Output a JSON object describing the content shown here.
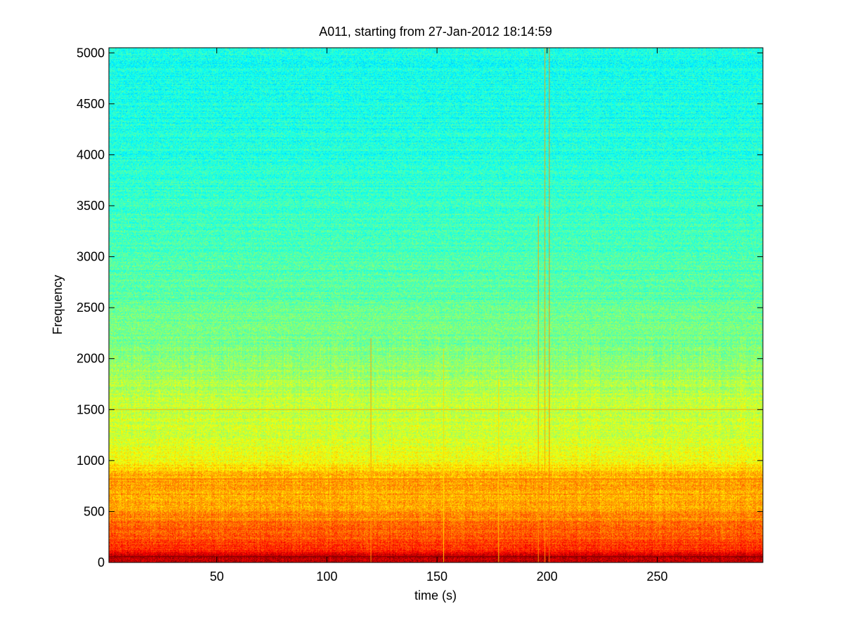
{
  "chart_data": {
    "type": "heatmap",
    "title": "A011, starting from 27-Jan-2012 18:14:59",
    "xlabel": "time (s)",
    "ylabel": "Frequency",
    "xlim": [
      1,
      298
    ],
    "ylim": [
      0,
      5050
    ],
    "xticks": [
      50,
      100,
      150,
      200,
      250
    ],
    "yticks": [
      0,
      500,
      1000,
      1500,
      2000,
      2500,
      3000,
      3500,
      4000,
      4500,
      5000
    ],
    "colormap": "jet",
    "grid": false,
    "intensity_profile_by_frequency": [
      {
        "freq": 0,
        "level": 0.92
      },
      {
        "freq": 60,
        "level": 0.95
      },
      {
        "freq": 120,
        "level": 0.85
      },
      {
        "freq": 250,
        "level": 0.8
      },
      {
        "freq": 480,
        "level": 0.74
      },
      {
        "freq": 560,
        "level": 0.7
      },
      {
        "freq": 800,
        "level": 0.72
      },
      {
        "freq": 1000,
        "level": 0.62
      },
      {
        "freq": 1200,
        "level": 0.58
      },
      {
        "freq": 1500,
        "level": 0.57
      },
      {
        "freq": 1700,
        "level": 0.55
      },
      {
        "freq": 2100,
        "level": 0.5
      },
      {
        "freq": 2600,
        "level": 0.47
      },
      {
        "freq": 3200,
        "level": 0.44
      },
      {
        "freq": 4000,
        "level": 0.41
      },
      {
        "freq": 5050,
        "level": 0.39
      }
    ],
    "horizontal_lines": [
      {
        "freq": 1500,
        "level": 0.7
      },
      {
        "freq": 820,
        "level": 0.78
      },
      {
        "freq": 60,
        "level": 1.0
      }
    ],
    "vertical_events": [
      {
        "time": 120,
        "fmax": 2200,
        "level": 0.72
      },
      {
        "time": 153,
        "fmax": 2100,
        "level": 0.66
      },
      {
        "time": 178,
        "fmax": 1800,
        "level": 0.66
      },
      {
        "time": 196,
        "fmax": 3400,
        "level": 0.72
      },
      {
        "time": 199,
        "fmax": 5050,
        "level": 0.72
      },
      {
        "time": 201,
        "fmax": 5050,
        "level": 0.75
      }
    ]
  }
}
